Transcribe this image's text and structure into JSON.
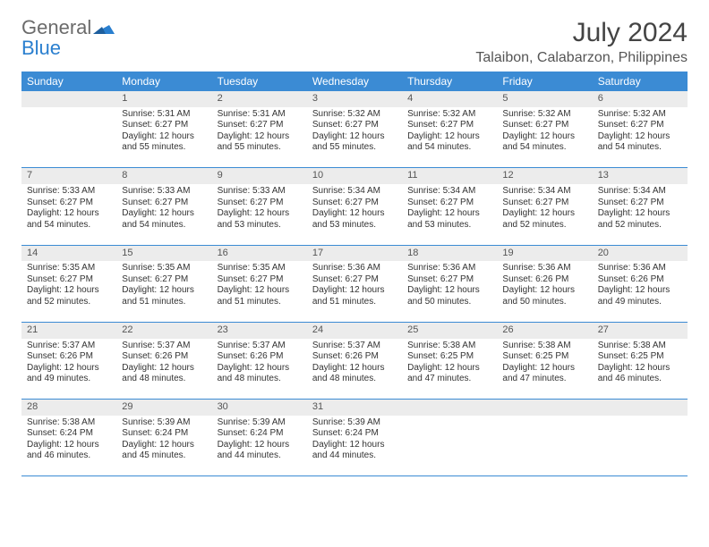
{
  "brand": {
    "word1": "General",
    "word2": "Blue"
  },
  "title": "July 2024",
  "location": "Talaibon, Calabarzon, Philippines",
  "colors": {
    "header_bg": "#3b8bd4",
    "header_text": "#ffffff",
    "daynum_bg": "#ececec",
    "border": "#3b8bd4",
    "logo_gray": "#6b6b6b",
    "logo_blue": "#2a7fcf"
  },
  "weekdays": [
    "Sunday",
    "Monday",
    "Tuesday",
    "Wednesday",
    "Thursday",
    "Friday",
    "Saturday"
  ],
  "weeks": [
    {
      "nums": [
        "",
        "1",
        "2",
        "3",
        "4",
        "5",
        "6"
      ],
      "cells": [
        null,
        {
          "sunrise": "Sunrise: 5:31 AM",
          "sunset": "Sunset: 6:27 PM",
          "day1": "Daylight: 12 hours",
          "day2": "and 55 minutes."
        },
        {
          "sunrise": "Sunrise: 5:31 AM",
          "sunset": "Sunset: 6:27 PM",
          "day1": "Daylight: 12 hours",
          "day2": "and 55 minutes."
        },
        {
          "sunrise": "Sunrise: 5:32 AM",
          "sunset": "Sunset: 6:27 PM",
          "day1": "Daylight: 12 hours",
          "day2": "and 55 minutes."
        },
        {
          "sunrise": "Sunrise: 5:32 AM",
          "sunset": "Sunset: 6:27 PM",
          "day1": "Daylight: 12 hours",
          "day2": "and 54 minutes."
        },
        {
          "sunrise": "Sunrise: 5:32 AM",
          "sunset": "Sunset: 6:27 PM",
          "day1": "Daylight: 12 hours",
          "day2": "and 54 minutes."
        },
        {
          "sunrise": "Sunrise: 5:32 AM",
          "sunset": "Sunset: 6:27 PM",
          "day1": "Daylight: 12 hours",
          "day2": "and 54 minutes."
        }
      ]
    },
    {
      "nums": [
        "7",
        "8",
        "9",
        "10",
        "11",
        "12",
        "13"
      ],
      "cells": [
        {
          "sunrise": "Sunrise: 5:33 AM",
          "sunset": "Sunset: 6:27 PM",
          "day1": "Daylight: 12 hours",
          "day2": "and 54 minutes."
        },
        {
          "sunrise": "Sunrise: 5:33 AM",
          "sunset": "Sunset: 6:27 PM",
          "day1": "Daylight: 12 hours",
          "day2": "and 54 minutes."
        },
        {
          "sunrise": "Sunrise: 5:33 AM",
          "sunset": "Sunset: 6:27 PM",
          "day1": "Daylight: 12 hours",
          "day2": "and 53 minutes."
        },
        {
          "sunrise": "Sunrise: 5:34 AM",
          "sunset": "Sunset: 6:27 PM",
          "day1": "Daylight: 12 hours",
          "day2": "and 53 minutes."
        },
        {
          "sunrise": "Sunrise: 5:34 AM",
          "sunset": "Sunset: 6:27 PM",
          "day1": "Daylight: 12 hours",
          "day2": "and 53 minutes."
        },
        {
          "sunrise": "Sunrise: 5:34 AM",
          "sunset": "Sunset: 6:27 PM",
          "day1": "Daylight: 12 hours",
          "day2": "and 52 minutes."
        },
        {
          "sunrise": "Sunrise: 5:34 AM",
          "sunset": "Sunset: 6:27 PM",
          "day1": "Daylight: 12 hours",
          "day2": "and 52 minutes."
        }
      ]
    },
    {
      "nums": [
        "14",
        "15",
        "16",
        "17",
        "18",
        "19",
        "20"
      ],
      "cells": [
        {
          "sunrise": "Sunrise: 5:35 AM",
          "sunset": "Sunset: 6:27 PM",
          "day1": "Daylight: 12 hours",
          "day2": "and 52 minutes."
        },
        {
          "sunrise": "Sunrise: 5:35 AM",
          "sunset": "Sunset: 6:27 PM",
          "day1": "Daylight: 12 hours",
          "day2": "and 51 minutes."
        },
        {
          "sunrise": "Sunrise: 5:35 AM",
          "sunset": "Sunset: 6:27 PM",
          "day1": "Daylight: 12 hours",
          "day2": "and 51 minutes."
        },
        {
          "sunrise": "Sunrise: 5:36 AM",
          "sunset": "Sunset: 6:27 PM",
          "day1": "Daylight: 12 hours",
          "day2": "and 51 minutes."
        },
        {
          "sunrise": "Sunrise: 5:36 AM",
          "sunset": "Sunset: 6:27 PM",
          "day1": "Daylight: 12 hours",
          "day2": "and 50 minutes."
        },
        {
          "sunrise": "Sunrise: 5:36 AM",
          "sunset": "Sunset: 6:26 PM",
          "day1": "Daylight: 12 hours",
          "day2": "and 50 minutes."
        },
        {
          "sunrise": "Sunrise: 5:36 AM",
          "sunset": "Sunset: 6:26 PM",
          "day1": "Daylight: 12 hours",
          "day2": "and 49 minutes."
        }
      ]
    },
    {
      "nums": [
        "21",
        "22",
        "23",
        "24",
        "25",
        "26",
        "27"
      ],
      "cells": [
        {
          "sunrise": "Sunrise: 5:37 AM",
          "sunset": "Sunset: 6:26 PM",
          "day1": "Daylight: 12 hours",
          "day2": "and 49 minutes."
        },
        {
          "sunrise": "Sunrise: 5:37 AM",
          "sunset": "Sunset: 6:26 PM",
          "day1": "Daylight: 12 hours",
          "day2": "and 48 minutes."
        },
        {
          "sunrise": "Sunrise: 5:37 AM",
          "sunset": "Sunset: 6:26 PM",
          "day1": "Daylight: 12 hours",
          "day2": "and 48 minutes."
        },
        {
          "sunrise": "Sunrise: 5:37 AM",
          "sunset": "Sunset: 6:26 PM",
          "day1": "Daylight: 12 hours",
          "day2": "and 48 minutes."
        },
        {
          "sunrise": "Sunrise: 5:38 AM",
          "sunset": "Sunset: 6:25 PM",
          "day1": "Daylight: 12 hours",
          "day2": "and 47 minutes."
        },
        {
          "sunrise": "Sunrise: 5:38 AM",
          "sunset": "Sunset: 6:25 PM",
          "day1": "Daylight: 12 hours",
          "day2": "and 47 minutes."
        },
        {
          "sunrise": "Sunrise: 5:38 AM",
          "sunset": "Sunset: 6:25 PM",
          "day1": "Daylight: 12 hours",
          "day2": "and 46 minutes."
        }
      ]
    },
    {
      "nums": [
        "28",
        "29",
        "30",
        "31",
        "",
        "",
        ""
      ],
      "cells": [
        {
          "sunrise": "Sunrise: 5:38 AM",
          "sunset": "Sunset: 6:24 PM",
          "day1": "Daylight: 12 hours",
          "day2": "and 46 minutes."
        },
        {
          "sunrise": "Sunrise: 5:39 AM",
          "sunset": "Sunset: 6:24 PM",
          "day1": "Daylight: 12 hours",
          "day2": "and 45 minutes."
        },
        {
          "sunrise": "Sunrise: 5:39 AM",
          "sunset": "Sunset: 6:24 PM",
          "day1": "Daylight: 12 hours",
          "day2": "and 44 minutes."
        },
        {
          "sunrise": "Sunrise: 5:39 AM",
          "sunset": "Sunset: 6:24 PM",
          "day1": "Daylight: 12 hours",
          "day2": "and 44 minutes."
        },
        null,
        null,
        null
      ]
    }
  ]
}
